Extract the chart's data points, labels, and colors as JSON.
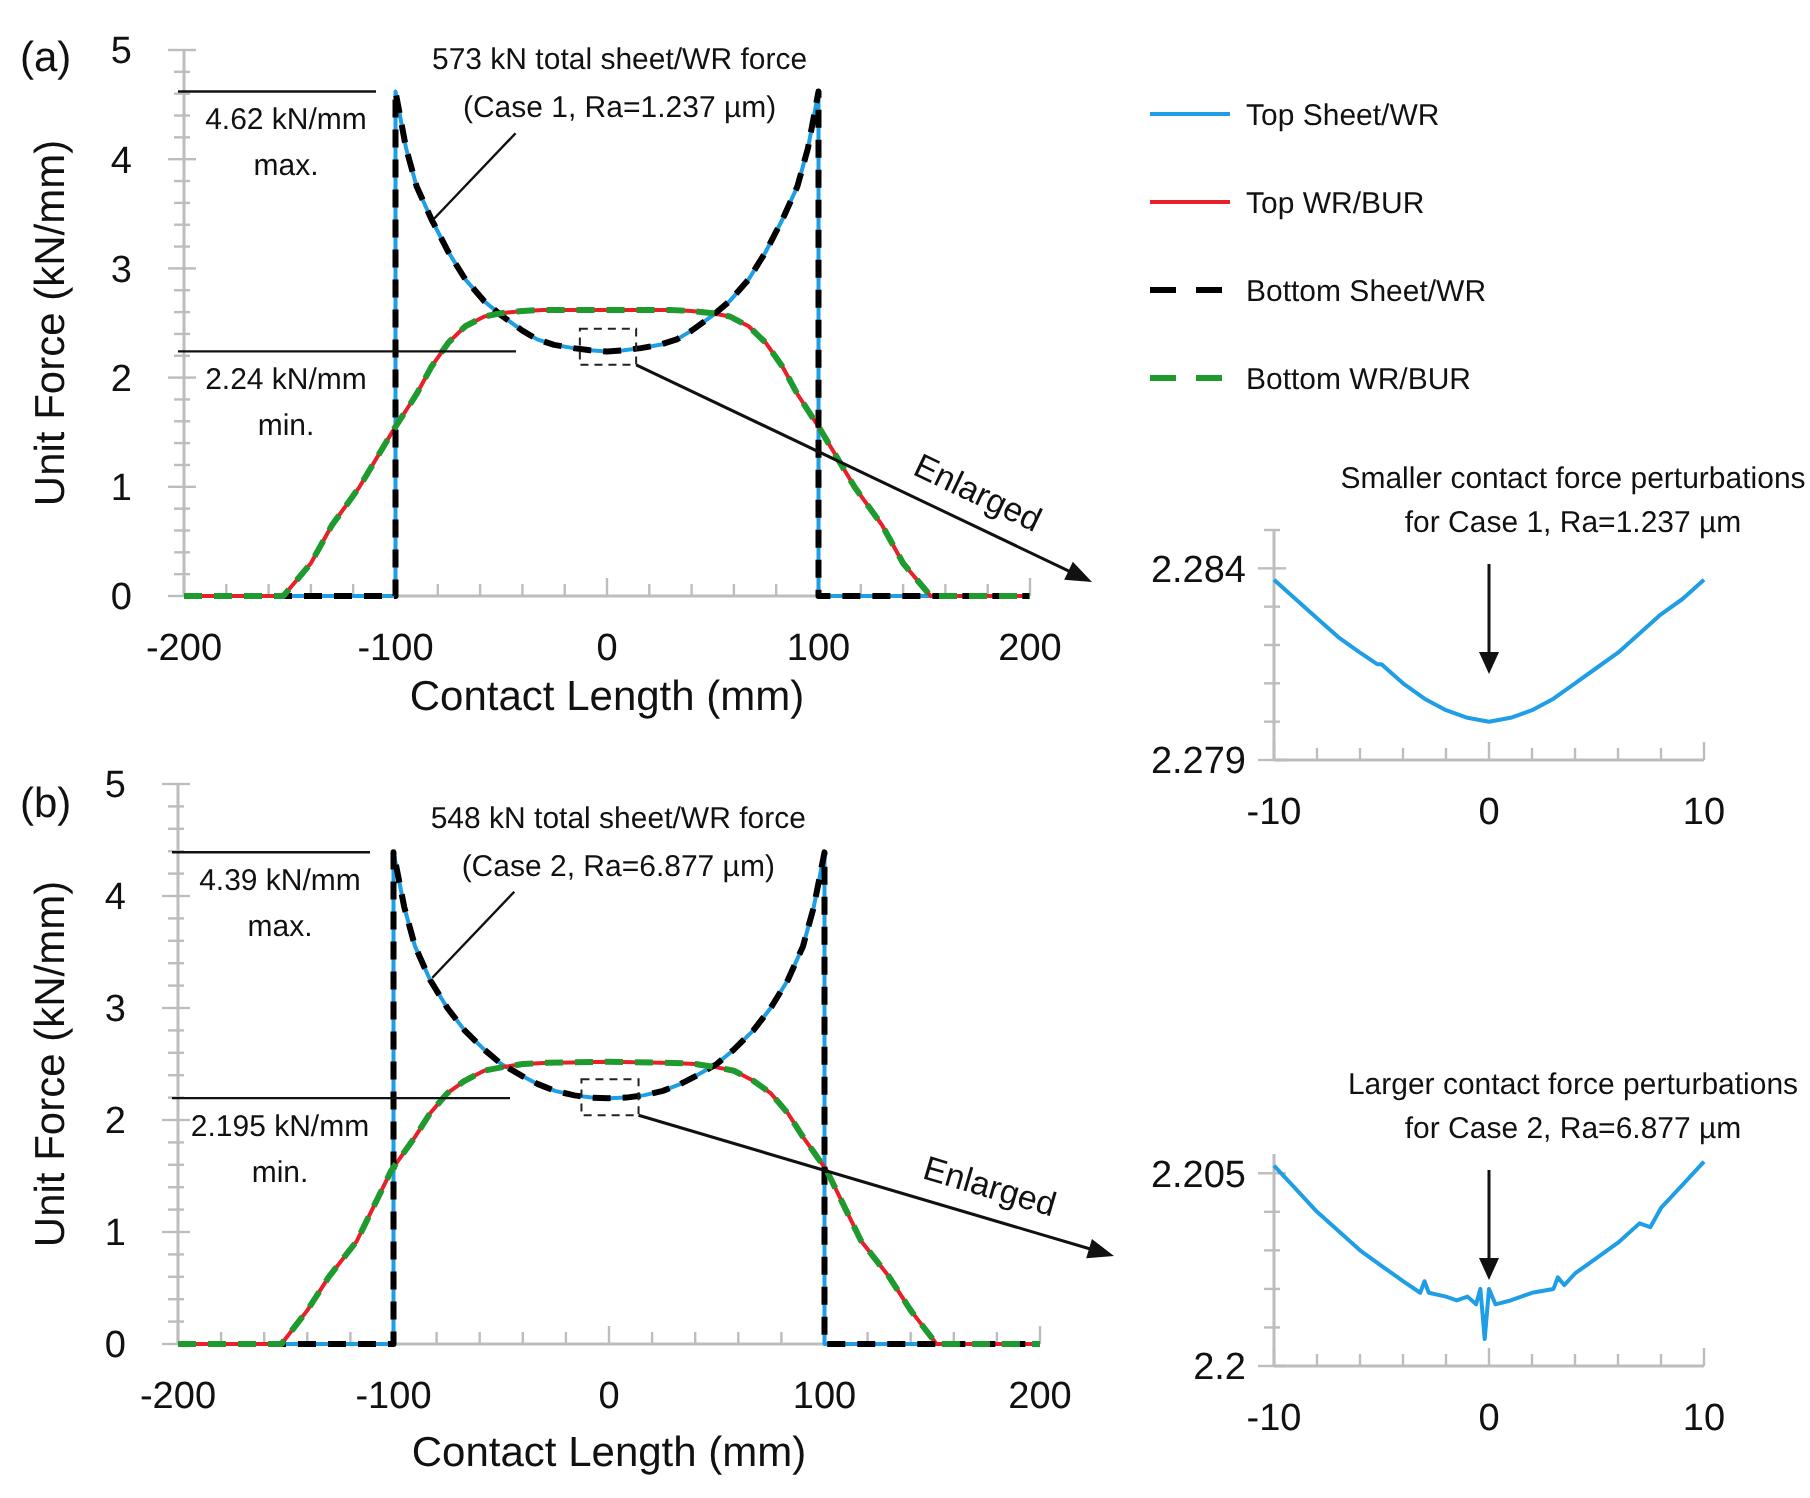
{
  "chart_data": [
    {
      "type": "line",
      "title": "(a)",
      "xlabel": "Contact Length (mm)",
      "ylabel": "Unit Force (kN/mm)",
      "xlim": [
        -200,
        200
      ],
      "ylim": [
        0,
        5
      ],
      "xticks": [
        -200,
        {
          "value": -180,
          "label": null
        },
        {
          "value": -160,
          "label": null
        },
        {
          "value": -140,
          "label": null
        },
        {
          "value": -120,
          "label": null
        },
        -100,
        {
          "value": -80,
          "label": null
        },
        {
          "value": -60,
          "label": null
        },
        {
          "value": -40,
          "label": null
        },
        {
          "value": -20,
          "label": null
        },
        0,
        {
          "value": 20,
          "label": null
        },
        {
          "value": 40,
          "label": null
        },
        {
          "value": 60,
          "label": null
        },
        {
          "value": 80,
          "label": null
        },
        100,
        {
          "value": 120,
          "label": null
        },
        {
          "value": 140,
          "label": null
        },
        {
          "value": 160,
          "label": null
        },
        {
          "value": 180,
          "label": null
        },
        200
      ],
      "yticks": [
        0,
        {
          "value": 0.2,
          "label": null
        },
        {
          "value": 0.4,
          "label": null
        },
        {
          "value": 0.6,
          "label": null
        },
        {
          "value": 0.8,
          "label": null
        },
        1,
        {
          "value": 1.2,
          "label": null
        },
        {
          "value": 1.4,
          "label": null
        },
        {
          "value": 1.6,
          "label": null
        },
        {
          "value": 1.8,
          "label": null
        },
        2,
        {
          "value": 2.2,
          "label": null
        },
        {
          "value": 2.4,
          "label": null
        },
        {
          "value": 2.6,
          "label": null
        },
        {
          "value": 2.8,
          "label": null
        },
        3,
        {
          "value": 3.2,
          "label": null
        },
        {
          "value": 3.4,
          "label": null
        },
        {
          "value": 3.6,
          "label": null
        },
        {
          "value": 3.8,
          "label": null
        },
        4,
        {
          "value": 4.2,
          "label": null
        },
        {
          "value": 4.4,
          "label": null
        },
        {
          "value": 4.6,
          "label": null
        },
        {
          "value": 4.8,
          "label": null
        },
        5
      ],
      "legend": "right",
      "annotations": [
        {
          "text": "573 kN total sheet/WR force\n(Case 1, Ra=1.237 µm)",
          "x": -82,
          "y": 3.45
        },
        "Enlarged"
      ],
      "ref_lines": [
        {
          "axis": "y",
          "value": 4.62,
          "label": "4.62 kN/mm\nmax."
        },
        {
          "axis": "y",
          "value": 2.24,
          "label": "2.24 kN/mm\nmin."
        }
      ],
      "series": [
        {
          "name": "Top Sheet/WR",
          "color": "#1f9ee6",
          "line_style": "solid",
          "x": [
            -200,
            -100,
            -100,
            -95,
            -90,
            -83,
            -75,
            -67,
            -58,
            -50,
            -40,
            -33,
            -25,
            -16,
            -8,
            0,
            8,
            16,
            25,
            33,
            40,
            50,
            58,
            67,
            75,
            83,
            90,
            95,
            100,
            100,
            200
          ],
          "values": [
            0,
            0,
            4.62,
            4.1,
            3.75,
            3.45,
            3.15,
            2.9,
            2.7,
            2.57,
            2.43,
            2.35,
            2.3,
            2.27,
            2.25,
            2.24,
            2.25,
            2.27,
            2.3,
            2.35,
            2.43,
            2.57,
            2.7,
            2.9,
            3.15,
            3.45,
            3.75,
            4.1,
            4.62,
            0,
            0
          ]
        },
        {
          "name": "Top WR/BUR",
          "color": "#e8202a",
          "line_style": "solid",
          "x": [
            -200,
            -153,
            -140,
            -130,
            -117,
            -101,
            -90,
            -83,
            -75,
            -67,
            -58,
            -50,
            -40,
            -30,
            0,
            30,
            40,
            50,
            58,
            67,
            75,
            83,
            90,
            101,
            117,
            130,
            140,
            153,
            200
          ],
          "values": [
            0,
            0,
            0.3,
            0.65,
            1.0,
            1.52,
            1.85,
            2.1,
            2.32,
            2.47,
            2.56,
            2.59,
            2.61,
            2.62,
            2.62,
            2.62,
            2.61,
            2.59,
            2.56,
            2.47,
            2.32,
            2.1,
            1.85,
            1.52,
            1.0,
            0.65,
            0.3,
            0,
            0
          ]
        },
        {
          "name": "Bottom Sheet/WR",
          "color": "#000000",
          "line_style": "dashed",
          "x": [
            -200,
            -100,
            -100,
            -95,
            -90,
            -83,
            -75,
            -67,
            -58,
            -50,
            -40,
            -33,
            -25,
            -16,
            -8,
            0,
            8,
            16,
            25,
            33,
            40,
            50,
            58,
            67,
            75,
            83,
            90,
            95,
            100,
            100,
            200
          ],
          "values": [
            0,
            0,
            4.62,
            4.1,
            3.75,
            3.45,
            3.15,
            2.9,
            2.7,
            2.57,
            2.43,
            2.35,
            2.3,
            2.27,
            2.25,
            2.24,
            2.25,
            2.27,
            2.3,
            2.35,
            2.43,
            2.57,
            2.7,
            2.9,
            3.15,
            3.45,
            3.75,
            4.1,
            4.62,
            0,
            0
          ]
        },
        {
          "name": "Bottom WR/BUR",
          "color": "#1f9a2e",
          "line_style": "dashed",
          "x": [
            -200,
            -153,
            -140,
            -130,
            -117,
            -101,
            -90,
            -83,
            -75,
            -67,
            -58,
            -50,
            -40,
            -30,
            0,
            30,
            40,
            50,
            58,
            67,
            75,
            83,
            90,
            101,
            117,
            130,
            140,
            153,
            200
          ],
          "values": [
            0,
            0,
            0.3,
            0.65,
            1.0,
            1.52,
            1.85,
            2.1,
            2.32,
            2.47,
            2.56,
            2.59,
            2.61,
            2.62,
            2.62,
            2.62,
            2.61,
            2.59,
            2.56,
            2.47,
            2.32,
            2.1,
            1.85,
            1.52,
            1.0,
            0.65,
            0.3,
            0,
            0
          ]
        }
      ]
    },
    {
      "type": "line",
      "title": "Smaller contact force perturbations\nfor Case 1, Ra=1.237 µm",
      "xlim": [
        -10,
        10
      ],
      "ylim": [
        2.279,
        2.285
      ],
      "xticks": [
        -10,
        {
          "value": -8,
          "label": null
        },
        {
          "value": -6,
          "label": null
        },
        {
          "value": -4,
          "label": null
        },
        {
          "value": -2,
          "label": null
        },
        0,
        {
          "value": 2,
          "label": null
        },
        {
          "value": 4,
          "label": null
        },
        {
          "value": 6,
          "label": null
        },
        {
          "value": 8,
          "label": null
        },
        10
      ],
      "yticks": [
        2.279,
        {
          "value": 2.28,
          "label": null
        },
        {
          "value": 2.281,
          "label": null
        },
        {
          "value": 2.282,
          "label": null
        },
        {
          "value": 2.283,
          "label": null
        },
        2.284,
        {
          "value": 2.285,
          "label": null
        }
      ],
      "series": [
        {
          "color": "#1f9ee6",
          "x": [
            -10,
            -9,
            -8,
            -7,
            -6,
            -5.2,
            -5,
            -4,
            -3,
            -2,
            -1,
            0,
            1,
            2,
            3,
            4,
            5,
            6,
            7,
            8,
            9,
            10
          ],
          "values": [
            2.2837,
            2.2832,
            2.2827,
            2.2822,
            2.2818,
            2.2815,
            2.2815,
            2.281,
            2.2806,
            2.2803,
            2.2801,
            2.28,
            2.2801,
            2.2803,
            2.2806,
            2.281,
            2.2814,
            2.2818,
            2.2823,
            2.2828,
            2.2832,
            2.2837
          ]
        }
      ]
    },
    {
      "type": "line",
      "title": "(b)",
      "xlabel": "Contact Length (mm)",
      "ylabel": "Unit Force (kN/mm)",
      "xlim": [
        -200,
        200
      ],
      "ylim": [
        0,
        5
      ],
      "xticks": [
        -200,
        {
          "value": -180,
          "label": null
        },
        {
          "value": -160,
          "label": null
        },
        {
          "value": -140,
          "label": null
        },
        {
          "value": -120,
          "label": null
        },
        -100,
        {
          "value": -80,
          "label": null
        },
        {
          "value": -60,
          "label": null
        },
        {
          "value": -40,
          "label": null
        },
        {
          "value": -20,
          "label": null
        },
        0,
        {
          "value": 20,
          "label": null
        },
        {
          "value": 40,
          "label": null
        },
        {
          "value": 60,
          "label": null
        },
        {
          "value": 80,
          "label": null
        },
        100,
        {
          "value": 120,
          "label": null
        },
        {
          "value": 140,
          "label": null
        },
        {
          "value": 160,
          "label": null
        },
        {
          "value": 180,
          "label": null
        },
        200
      ],
      "yticks": [
        0,
        {
          "value": 0.2,
          "label": null
        },
        {
          "value": 0.4,
          "label": null
        },
        {
          "value": 0.6,
          "label": null
        },
        {
          "value": 0.8,
          "label": null
        },
        1,
        {
          "value": 1.2,
          "label": null
        },
        {
          "value": 1.4,
          "label": null
        },
        {
          "value": 1.6,
          "label": null
        },
        {
          "value": 1.8,
          "label": null
        },
        2,
        {
          "value": 2.2,
          "label": null
        },
        {
          "value": 2.4,
          "label": null
        },
        {
          "value": 2.6,
          "label": null
        },
        {
          "value": 2.8,
          "label": null
        },
        3,
        {
          "value": 3.2,
          "label": null
        },
        {
          "value": 3.4,
          "label": null
        },
        {
          "value": 3.6,
          "label": null
        },
        {
          "value": 3.8,
          "label": null
        },
        4,
        {
          "value": 4.2,
          "label": null
        },
        {
          "value": 4.4,
          "label": null
        },
        {
          "value": 4.6,
          "label": null
        },
        {
          "value": 4.8,
          "label": null
        },
        5
      ],
      "annotations": [
        {
          "text": "548 kN total sheet/WR force\n(Case 2, Ra=6.877 µm)",
          "x": -82,
          "y": 3.27
        },
        "Enlarged"
      ],
      "ref_lines": [
        {
          "axis": "y",
          "value": 4.39,
          "label": "4.39 kN/mm\nmax."
        },
        {
          "axis": "y",
          "value": 2.195,
          "label": "2.195 kN/mm\nmin."
        }
      ],
      "series": [
        {
          "color": "#1f9ee6",
          "line_style": "solid",
          "x": [
            -200,
            -100,
            -100,
            -95,
            -90,
            -83,
            -75,
            -67,
            -58,
            -50,
            -40,
            -33,
            -25,
            -16,
            -8,
            0,
            8,
            16,
            25,
            33,
            40,
            50,
            58,
            67,
            75,
            83,
            90,
            95,
            100,
            100,
            200
          ],
          "values": [
            0,
            0,
            4.39,
            3.9,
            3.55,
            3.25,
            3.0,
            2.8,
            2.63,
            2.5,
            2.39,
            2.32,
            2.26,
            2.22,
            2.2,
            2.195,
            2.2,
            2.22,
            2.26,
            2.32,
            2.39,
            2.5,
            2.63,
            2.8,
            3.0,
            3.25,
            3.55,
            3.9,
            4.39,
            0,
            0
          ]
        },
        {
          "color": "#e8202a",
          "line_style": "solid",
          "x": [
            -200,
            -152,
            -140,
            -130,
            -117,
            -101,
            -90,
            -83,
            -75,
            -67,
            -58,
            -50,
            -40,
            -30,
            0,
            30,
            40,
            50,
            58,
            67,
            75,
            83,
            90,
            101,
            117,
            130,
            140,
            152,
            200
          ],
          "values": [
            0,
            0,
            0.3,
            0.6,
            0.92,
            1.55,
            1.85,
            2.06,
            2.24,
            2.35,
            2.44,
            2.47,
            2.5,
            2.51,
            2.52,
            2.51,
            2.5,
            2.47,
            2.44,
            2.35,
            2.24,
            2.06,
            1.85,
            1.55,
            0.92,
            0.6,
            0.3,
            0,
            0
          ]
        },
        {
          "color": "#000000",
          "line_style": "dashed",
          "x": [
            -200,
            -100,
            -100,
            -95,
            -90,
            -83,
            -75,
            -67,
            -58,
            -50,
            -40,
            -33,
            -25,
            -16,
            -8,
            0,
            8,
            16,
            25,
            33,
            40,
            50,
            58,
            67,
            75,
            83,
            90,
            95,
            100,
            100,
            200
          ],
          "values": [
            0,
            0,
            4.39,
            3.9,
            3.55,
            3.25,
            3.0,
            2.8,
            2.63,
            2.5,
            2.39,
            2.32,
            2.26,
            2.22,
            2.2,
            2.195,
            2.2,
            2.22,
            2.26,
            2.32,
            2.39,
            2.5,
            2.63,
            2.8,
            3.0,
            3.25,
            3.55,
            3.9,
            4.39,
            0,
            0
          ]
        },
        {
          "color": "#1f9a2e",
          "line_style": "dashed",
          "x": [
            -200,
            -152,
            -140,
            -130,
            -117,
            -101,
            -90,
            -83,
            -75,
            -67,
            -58,
            -50,
            -40,
            -30,
            0,
            30,
            40,
            50,
            58,
            67,
            75,
            83,
            90,
            101,
            117,
            130,
            140,
            152,
            200
          ],
          "values": [
            0,
            0,
            0.3,
            0.6,
            0.92,
            1.55,
            1.85,
            2.06,
            2.24,
            2.35,
            2.44,
            2.47,
            2.5,
            2.51,
            2.52,
            2.51,
            2.5,
            2.47,
            2.44,
            2.35,
            2.24,
            2.06,
            1.85,
            1.55,
            0.92,
            0.6,
            0.3,
            0,
            0
          ]
        }
      ]
    },
    {
      "type": "line",
      "title": "Larger contact force perturbations\nfor Case 2, Ra=6.877 µm",
      "xlim": [
        -10,
        10
      ],
      "ylim": [
        2.2,
        2.2055
      ],
      "xticks": [
        -10,
        {
          "value": -8,
          "label": null
        },
        {
          "value": -6,
          "label": null
        },
        {
          "value": -4,
          "label": null
        },
        {
          "value": -2,
          "label": null
        },
        0,
        {
          "value": 2,
          "label": null
        },
        {
          "value": 4,
          "label": null
        },
        {
          "value": 6,
          "label": null
        },
        {
          "value": 8,
          "label": null
        },
        10
      ],
      "yticks": [
        2.2,
        {
          "value": 2.201,
          "label": null
        },
        {
          "value": 2.202,
          "label": null
        },
        {
          "value": 2.203,
          "label": null
        },
        {
          "value": 2.204,
          "label": null
        },
        2.205
      ],
      "series": [
        {
          "color": "#1f9ee6",
          "x": [
            -10,
            -9,
            -8,
            -7,
            -6,
            -5,
            -4,
            -3.2,
            -3,
            -2.8,
            -2,
            -1.5,
            -1,
            -0.6,
            -0.4,
            -0.2,
            0,
            0.3,
            1,
            1.5,
            2,
            3,
            3.2,
            3.5,
            4,
            5,
            6,
            7,
            7.5,
            8,
            9,
            10
          ],
          "values": [
            2.2052,
            2.2046,
            2.204,
            2.2035,
            2.203,
            2.2026,
            2.2022,
            2.2019,
            2.2022,
            2.2019,
            2.2018,
            2.2017,
            2.2018,
            2.2016,
            2.202,
            2.2007,
            2.202,
            2.2016,
            2.2017,
            2.2018,
            2.2019,
            2.202,
            2.2023,
            2.2021,
            2.2024,
            2.2028,
            2.2032,
            2.2037,
            2.2036,
            2.2041,
            2.2047,
            2.2053
          ]
        }
      ]
    }
  ]
}
